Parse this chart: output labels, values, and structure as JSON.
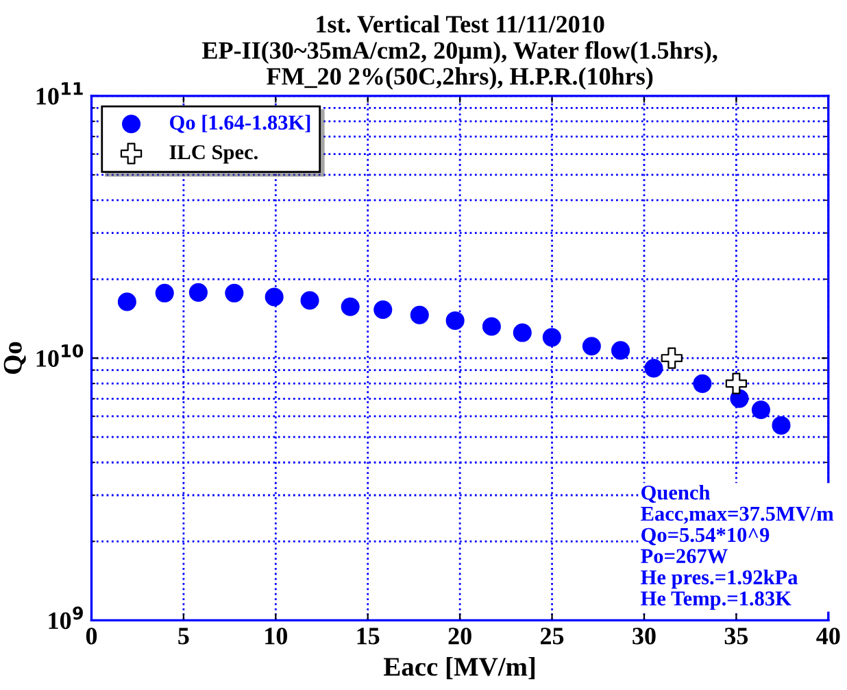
{
  "chart_data": {
    "type": "scatter",
    "title": "1st. Vertical Test 11/11/2010\nEP-II(30~35mA/cm2, 20µm), Water flow(1.5hrs),\nFM_20 2%(50C,2hrs), H.P.R.(10hrs)",
    "xlabel": "Eacc [MV/m]",
    "ylabel": "Qo",
    "series": [
      {
        "name": "Qo [1.64-1.83K]",
        "color": "#0000ff",
        "marker": "circle",
        "x": [
          1.93,
          3.97,
          5.8,
          7.75,
          9.92,
          11.85,
          14.05,
          15.82,
          17.81,
          19.74,
          21.72,
          23.39,
          24.99,
          27.15,
          28.72,
          30.52,
          33.16,
          35.17,
          36.34,
          37.44
        ],
        "values": [
          16400000000.0,
          17700000000.0,
          17800000000.0,
          17700000000.0,
          17100000000.0,
          16600000000.0,
          15700000000.0,
          15300000000.0,
          14600000000.0,
          13900000000.0,
          13200000000.0,
          12500000000.0,
          12000000000.0,
          11100000000.0,
          10700000000.0,
          9150000000.0,
          7990000000.0,
          7010000000.0,
          6350000000.0,
          5540000000.0
        ]
      },
      {
        "name": "ILC Spec.",
        "color": "#ffffff",
        "marker": "cross",
        "x": [
          31.5,
          35.0
        ],
        "values": [
          10000000000.0,
          8000000000.0
        ]
      }
    ],
    "xlim": [
      0,
      40
    ],
    "xticks": [
      0,
      5,
      10,
      15,
      20,
      25,
      30,
      35,
      40
    ],
    "ylim": [
      1000000000.0,
      100000000000.0
    ],
    "yticks": [
      {
        "value": 1000000000.0,
        "label": "10$^{9}$"
      },
      {
        "value": 10000000000.0,
        "label": "10$^{10}$"
      },
      {
        "value": 100000000000.0,
        "label": "10$^{11}$"
      }
    ],
    "log": "y",
    "grid": true,
    "legend": "top left",
    "annotations": [
      "Quench\nEacc,max=37.5MV/m\nQo=5.54*10^9\nPo=267W\nHe pres.=1.92kPa\nHe Temp.=1.83K"
    ]
  }
}
